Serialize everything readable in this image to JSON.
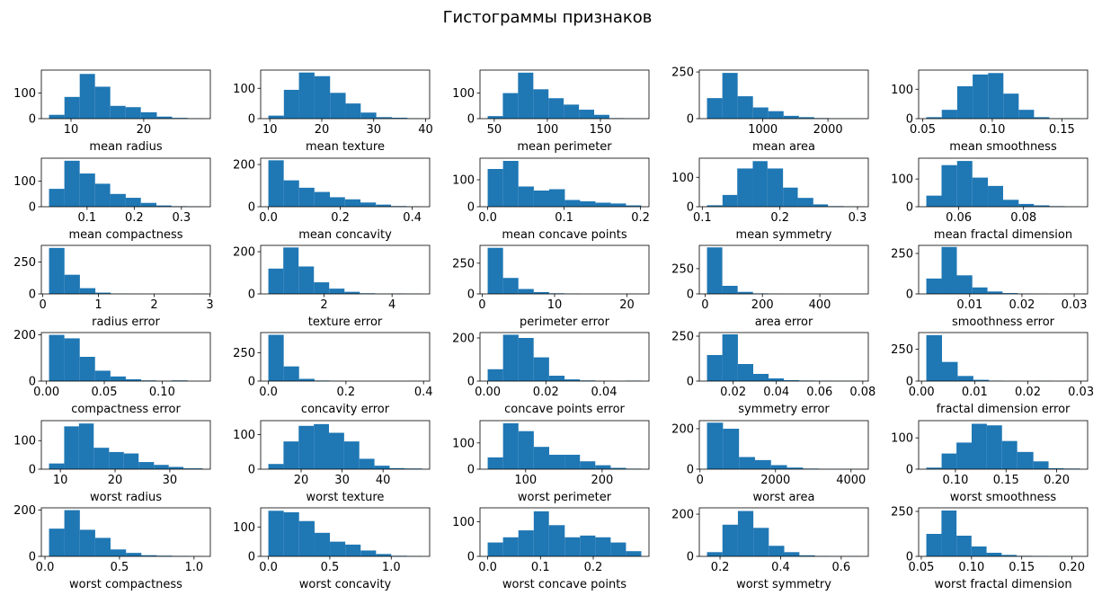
{
  "figure": {
    "title": "Гистограммы признаков",
    "bar_color": "#1f77b4"
  },
  "chart_data": [
    {
      "type": "bar",
      "xlabel": "mean radius",
      "bins": [
        6.98,
        9.1,
        11.2,
        13.3,
        15.4,
        17.5,
        19.6,
        21.8,
        23.9,
        26.0,
        28.1
      ],
      "counts": [
        15,
        85,
        175,
        125,
        50,
        45,
        25,
        8,
        3,
        1
      ],
      "xticks": [
        10,
        20
      ],
      "yticks": [
        0,
        100
      ],
      "ylim": [
        0,
        190
      ]
    },
    {
      "type": "bar",
      "xlabel": "mean texture",
      "bins": [
        9.71,
        12.7,
        15.6,
        18.6,
        21.6,
        24.6,
        27.5,
        30.5,
        33.5,
        36.5,
        39.3
      ],
      "counts": [
        10,
        95,
        152,
        140,
        85,
        50,
        20,
        5,
        3,
        1
      ],
      "xticks": [
        10,
        20,
        30,
        40
      ],
      "yticks": [
        0,
        100
      ],
      "ylim": [
        0,
        160
      ]
    },
    {
      "type": "bar",
      "xlabel": "mean perimeter",
      "bins": [
        43.8,
        58.1,
        72.4,
        86.8,
        101.1,
        115.4,
        129.8,
        144.1,
        158.4,
        172.8,
        188.5
      ],
      "counts": [
        10,
        100,
        180,
        115,
        80,
        55,
        35,
        15,
        2,
        1
      ],
      "xticks": [
        50,
        100,
        150
      ],
      "yticks": [
        0,
        100
      ],
      "ylim": [
        0,
        190
      ]
    },
    {
      "type": "bar",
      "xlabel": "mean area",
      "bins": [
        143.5,
        379,
        614,
        849,
        1084,
        1319,
        1554,
        1789,
        2024,
        2259,
        2501
      ],
      "counts": [
        110,
        245,
        120,
        60,
        40,
        15,
        8,
        3,
        1,
        1
      ],
      "xticks": [
        1000,
        2000
      ],
      "yticks": [
        0,
        250
      ],
      "ylim": [
        0,
        260
      ]
    },
    {
      "type": "bar",
      "xlabel": "mean smoothness",
      "bins": [
        0.0526,
        0.0637,
        0.0748,
        0.0859,
        0.097,
        0.108,
        0.119,
        0.13,
        0.141,
        0.152,
        0.163
      ],
      "counts": [
        5,
        30,
        110,
        150,
        155,
        85,
        30,
        5,
        1,
        1
      ],
      "xticks": [
        0.05,
        0.1,
        0.15
      ],
      "tick_labels": [
        "0.05",
        "0.10",
        "0.15"
      ],
      "yticks": [
        0,
        100
      ],
      "ylim": [
        0,
        165
      ]
    },
    {
      "type": "bar",
      "xlabel": "mean compactness",
      "bins": [
        0.0194,
        0.0519,
        0.0844,
        0.117,
        0.149,
        0.182,
        0.214,
        0.247,
        0.279,
        0.312,
        0.345
      ],
      "counts": [
        70,
        180,
        130,
        90,
        50,
        35,
        15,
        5,
        2,
        1
      ],
      "xticks": [
        0.1,
        0.2,
        0.3
      ],
      "yticks": [
        0,
        100
      ],
      "ylim": [
        0,
        190
      ]
    },
    {
      "type": "bar",
      "xlabel": "mean concavity",
      "bins": [
        0,
        0.0427,
        0.0854,
        0.128,
        0.171,
        0.213,
        0.256,
        0.299,
        0.341,
        0.384,
        0.427
      ],
      "counts": [
        220,
        125,
        90,
        70,
        45,
        35,
        20,
        10,
        3,
        1
      ],
      "xticks": [
        0,
        0.2,
        0.4
      ],
      "tick_labels": [
        "0.0",
        "0.2",
        "0.4"
      ],
      "yticks": [
        0,
        200
      ],
      "ylim": [
        0,
        230
      ]
    },
    {
      "type": "bar",
      "xlabel": "mean concave points",
      "bins": [
        0,
        0.0201,
        0.0402,
        0.0604,
        0.0805,
        0.101,
        0.121,
        0.141,
        0.161,
        0.181,
        0.201
      ],
      "counts": [
        140,
        170,
        75,
        60,
        65,
        25,
        20,
        15,
        12,
        5
      ],
      "xticks": [
        0,
        0.1,
        0.2
      ],
      "tick_labels": [
        "0.0",
        "0.1",
        "0.2"
      ],
      "yticks": [
        0,
        100
      ],
      "ylim": [
        0,
        180
      ]
    },
    {
      "type": "bar",
      "xlabel": "mean symmetry",
      "bins": [
        0.106,
        0.126,
        0.145,
        0.165,
        0.184,
        0.204,
        0.223,
        0.243,
        0.262,
        0.282,
        0.304
      ],
      "counts": [
        5,
        40,
        130,
        155,
        130,
        65,
        30,
        8,
        2,
        1
      ],
      "xticks": [
        0.1,
        0.2,
        0.3
      ],
      "yticks": [
        0,
        100
      ],
      "ylim": [
        0,
        165
      ]
    },
    {
      "type": "bar",
      "xlabel": "mean fractal dimension",
      "bins": [
        0.05,
        0.0547,
        0.0595,
        0.0642,
        0.069,
        0.0737,
        0.0785,
        0.0832,
        0.088,
        0.0927,
        0.0974
      ],
      "counts": [
        40,
        150,
        165,
        105,
        75,
        25,
        10,
        5,
        2,
        1
      ],
      "xticks": [
        0.06,
        0.08
      ],
      "yticks": [
        0,
        100
      ],
      "ylim": [
        0,
        175
      ]
    },
    {
      "type": "bar",
      "xlabel": "radius error",
      "bins": [
        0.112,
        0.389,
        0.666,
        0.944,
        1.22,
        1.5,
        1.78,
        2.05,
        2.33,
        2.61,
        2.87
      ],
      "counts": [
        360,
        150,
        45,
        10,
        2,
        1,
        0,
        0,
        0,
        1
      ],
      "xticks": [
        0,
        1,
        2,
        3
      ],
      "yticks": [
        0,
        250
      ],
      "ylim": [
        0,
        380
      ]
    },
    {
      "type": "bar",
      "xlabel": "texture error",
      "bins": [
        0.36,
        0.8,
        1.25,
        1.7,
        2.15,
        2.6,
        3.05,
        3.5,
        3.95,
        4.4,
        4.88
      ],
      "counts": [
        120,
        220,
        130,
        55,
        25,
        10,
        3,
        1,
        2,
        1
      ],
      "xticks": [
        2,
        4
      ],
      "yticks": [
        0,
        200
      ],
      "ylim": [
        0,
        230
      ]
    },
    {
      "type": "bar",
      "xlabel": "perimeter error",
      "bins": [
        0.757,
        2.88,
        5.0,
        7.12,
        9.24,
        11.36,
        13.48,
        15.6,
        17.72,
        19.84,
        21.98
      ],
      "counts": [
        375,
        130,
        40,
        15,
        5,
        2,
        0,
        0,
        0,
        1
      ],
      "xticks": [
        0,
        10,
        20
      ],
      "yticks": [
        0,
        250
      ],
      "ylim": [
        0,
        395
      ]
    },
    {
      "type": "bar",
      "xlabel": "area error",
      "bins": [
        6.8,
        60.2,
        113.6,
        167,
        220.4,
        273.8,
        327.2,
        380.6,
        434,
        487.4,
        542.2
      ],
      "counts": [
        460,
        80,
        20,
        5,
        2,
        1,
        0,
        0,
        1,
        0
      ],
      "xticks": [
        0,
        200,
        400
      ],
      "yticks": [
        0,
        250
      ],
      "ylim": [
        0,
        480
      ]
    },
    {
      "type": "bar",
      "xlabel": "smoothness error",
      "bins": [
        0.0017,
        0.00462,
        0.00754,
        0.0105,
        0.0134,
        0.0163,
        0.0192,
        0.0221,
        0.0251,
        0.028,
        0.0311
      ],
      "counts": [
        95,
        290,
        115,
        40,
        15,
        5,
        2,
        1,
        0,
        1
      ],
      "xticks": [
        0.01,
        0.02,
        0.03
      ],
      "yticks": [
        0,
        250
      ],
      "ylim": [
        0,
        300
      ]
    },
    {
      "type": "bar",
      "xlabel": "compactness error",
      "bins": [
        0.00225,
        0.0155,
        0.0288,
        0.042,
        0.0553,
        0.0686,
        0.0818,
        0.0951,
        0.108,
        0.122,
        0.135
      ],
      "counts": [
        200,
        185,
        105,
        45,
        20,
        8,
        3,
        1,
        3,
        0
      ],
      "xticks": [
        0,
        0.05,
        0.1
      ],
      "tick_labels": [
        "0.00",
        "0.05",
        "0.10"
      ],
      "yticks": [
        0,
        200
      ],
      "ylim": [
        0,
        210
      ]
    },
    {
      "type": "bar",
      "xlabel": "concavity error",
      "bins": [
        0,
        0.0396,
        0.0792,
        0.119,
        0.158,
        0.198,
        0.238,
        0.277,
        0.317,
        0.356,
        0.396
      ],
      "counts": [
        410,
        130,
        20,
        5,
        2,
        0,
        0,
        0,
        0,
        1
      ],
      "xticks": [
        0,
        0.2,
        0.4
      ],
      "tick_labels": [
        "0.0",
        "0.2",
        "0.4"
      ],
      "yticks": [
        0,
        250
      ],
      "ylim": [
        0,
        430
      ]
    },
    {
      "type": "bar",
      "xlabel": "concave points error",
      "bins": [
        0,
        0.00528,
        0.0106,
        0.0158,
        0.0211,
        0.0264,
        0.0317,
        0.037,
        0.0422,
        0.0475,
        0.0528
      ],
      "counts": [
        55,
        215,
        200,
        110,
        25,
        8,
        3,
        1,
        0,
        2
      ],
      "xticks": [
        0,
        0.02,
        0.04
      ],
      "tick_labels": [
        "0.00",
        "0.02",
        "0.04"
      ],
      "yticks": [
        0,
        200
      ],
      "ylim": [
        0,
        225
      ]
    },
    {
      "type": "bar",
      "xlabel": "symmetry error",
      "bins": [
        0.0079,
        0.015,
        0.0222,
        0.0293,
        0.0364,
        0.0435,
        0.0506,
        0.0578,
        0.0649,
        0.072,
        0.079
      ],
      "counts": [
        145,
        260,
        95,
        40,
        15,
        5,
        3,
        2,
        1,
        1
      ],
      "xticks": [
        0.02,
        0.04,
        0.06,
        0.08
      ],
      "tick_labels": [
        "0.02",
        "0.04",
        "0.06",
        "0.08"
      ],
      "yticks": [
        0,
        250
      ],
      "ylim": [
        0,
        270
      ]
    },
    {
      "type": "bar",
      "xlabel": "fractal dimension error",
      "bins": [
        0.0009,
        0.00385,
        0.0068,
        0.00975,
        0.0127,
        0.0156,
        0.0186,
        0.0215,
        0.0245,
        0.0274,
        0.0298
      ],
      "counts": [
        360,
        150,
        40,
        10,
        3,
        1,
        0,
        2,
        0,
        1
      ],
      "xticks": [
        0,
        0.01,
        0.02,
        0.03
      ],
      "tick_labels": [
        "0.00",
        "0.01",
        "0.02",
        "0.03"
      ],
      "yticks": [
        0,
        250
      ],
      "ylim": [
        0,
        380
      ]
    },
    {
      "type": "bar",
      "xlabel": "worst radius",
      "bins": [
        7.93,
        10.7,
        13.4,
        16.1,
        18.9,
        21.6,
        24.3,
        27.1,
        29.8,
        32.5,
        36.0
      ],
      "counts": [
        20,
        150,
        160,
        75,
        60,
        55,
        25,
        15,
        8,
        3
      ],
      "xticks": [
        10,
        20,
        30
      ],
      "yticks": [
        0,
        100
      ],
      "ylim": [
        0,
        170
      ]
    },
    {
      "type": "bar",
      "xlabel": "worst texture",
      "bins": [
        12.0,
        15.7,
        19.4,
        23.1,
        26.8,
        30.5,
        34.2,
        37.9,
        41.6,
        45.3,
        49.5
      ],
      "counts": [
        15,
        80,
        125,
        130,
        105,
        80,
        30,
        10,
        3,
        2
      ],
      "xticks": [
        20,
        30,
        40
      ],
      "yticks": [
        0,
        100
      ],
      "ylim": [
        0,
        140
      ]
    },
    {
      "type": "bar",
      "xlabel": "worst perimeter",
      "bins": [
        50.4,
        70.5,
        90.6,
        110.7,
        130.8,
        150.9,
        171,
        191.1,
        211.2,
        231.3,
        251.2
      ],
      "counts": [
        45,
        175,
        145,
        85,
        55,
        55,
        30,
        15,
        5,
        2
      ],
      "xticks": [
        100,
        200
      ],
      "yticks": [
        0,
        100
      ],
      "ylim": [
        0,
        185
      ]
    },
    {
      "type": "bar",
      "xlabel": "worst area",
      "bins": [
        185.2,
        609,
        1033,
        1457,
        1881,
        2305,
        2729,
        3153,
        3577,
        4001,
        4254
      ],
      "counts": [
        230,
        200,
        60,
        45,
        20,
        8,
        3,
        1,
        1,
        1
      ],
      "xticks": [
        0,
        2000,
        4000
      ],
      "yticks": [
        0,
        200
      ],
      "ylim": [
        0,
        240
      ]
    },
    {
      "type": "bar",
      "xlabel": "worst smoothness",
      "bins": [
        0.0712,
        0.0863,
        0.101,
        0.116,
        0.131,
        0.146,
        0.161,
        0.177,
        0.192,
        0.207,
        0.223
      ],
      "counts": [
        5,
        50,
        85,
        145,
        140,
        90,
        55,
        25,
        3,
        2
      ],
      "xticks": [
        0.1,
        0.15,
        0.2
      ],
      "tick_labels": [
        "0.10",
        "0.15",
        "0.20"
      ],
      "yticks": [
        0,
        100
      ],
      "ylim": [
        0,
        155
      ]
    },
    {
      "type": "bar",
      "xlabel": "worst compactness",
      "bins": [
        0.0273,
        0.13,
        0.234,
        0.337,
        0.44,
        0.544,
        0.647,
        0.75,
        0.854,
        0.957,
        1.058
      ],
      "counts": [
        120,
        200,
        115,
        80,
        30,
        15,
        5,
        3,
        2,
        1
      ],
      "xticks": [
        0,
        0.5,
        1
      ],
      "tick_labels": [
        "0.0",
        "0.5",
        "1.0"
      ],
      "yticks": [
        0,
        200
      ],
      "ylim": [
        0,
        210
      ]
    },
    {
      "type": "bar",
      "xlabel": "worst concavity",
      "bins": [
        0,
        0.125,
        0.25,
        0.376,
        0.501,
        0.626,
        0.751,
        0.876,
        1.0,
        1.13,
        1.25
      ],
      "counts": [
        155,
        150,
        120,
        80,
        50,
        40,
        20,
        8,
        2,
        1
      ],
      "xticks": [
        0,
        0.5,
        1
      ],
      "tick_labels": [
        "0.0",
        "0.5",
        "1.0"
      ],
      "yticks": [
        0,
        100
      ],
      "ylim": [
        0,
        165
      ]
    },
    {
      "type": "bar",
      "xlabel": "worst concave points",
      "bins": [
        0,
        0.0291,
        0.0582,
        0.0873,
        0.116,
        0.146,
        0.175,
        0.204,
        0.233,
        0.262,
        0.291
      ],
      "counts": [
        40,
        55,
        75,
        130,
        90,
        55,
        60,
        55,
        40,
        15
      ],
      "xticks": [
        0,
        0.1,
        0.2
      ],
      "tick_labels": [
        "0.0",
        "0.1",
        "0.2"
      ],
      "yticks": [
        0,
        100
      ],
      "ylim": [
        0,
        140
      ]
    },
    {
      "type": "bar",
      "xlabel": "worst symmetry",
      "bins": [
        0.157,
        0.208,
        0.259,
        0.31,
        0.361,
        0.412,
        0.462,
        0.513,
        0.564,
        0.615,
        0.664
      ],
      "counts": [
        20,
        150,
        215,
        135,
        50,
        20,
        5,
        2,
        1,
        1
      ],
      "xticks": [
        0.2,
        0.4,
        0.6
      ],
      "yticks": [
        0,
        200
      ],
      "ylim": [
        0,
        230
      ]
    },
    {
      "type": "bar",
      "xlabel": "worst fractal dimension",
      "bins": [
        0.055,
        0.0701,
        0.0851,
        0.1,
        0.115,
        0.13,
        0.145,
        0.16,
        0.175,
        0.19,
        0.208
      ],
      "counts": [
        125,
        255,
        115,
        55,
        20,
        8,
        3,
        2,
        1,
        1
      ],
      "xticks": [
        0.05,
        0.1,
        0.15,
        0.2
      ],
      "tick_labels": [
        "0.05",
        "0.10",
        "0.15",
        "0.20"
      ],
      "yticks": [
        0,
        250
      ],
      "ylim": [
        0,
        270
      ]
    }
  ]
}
